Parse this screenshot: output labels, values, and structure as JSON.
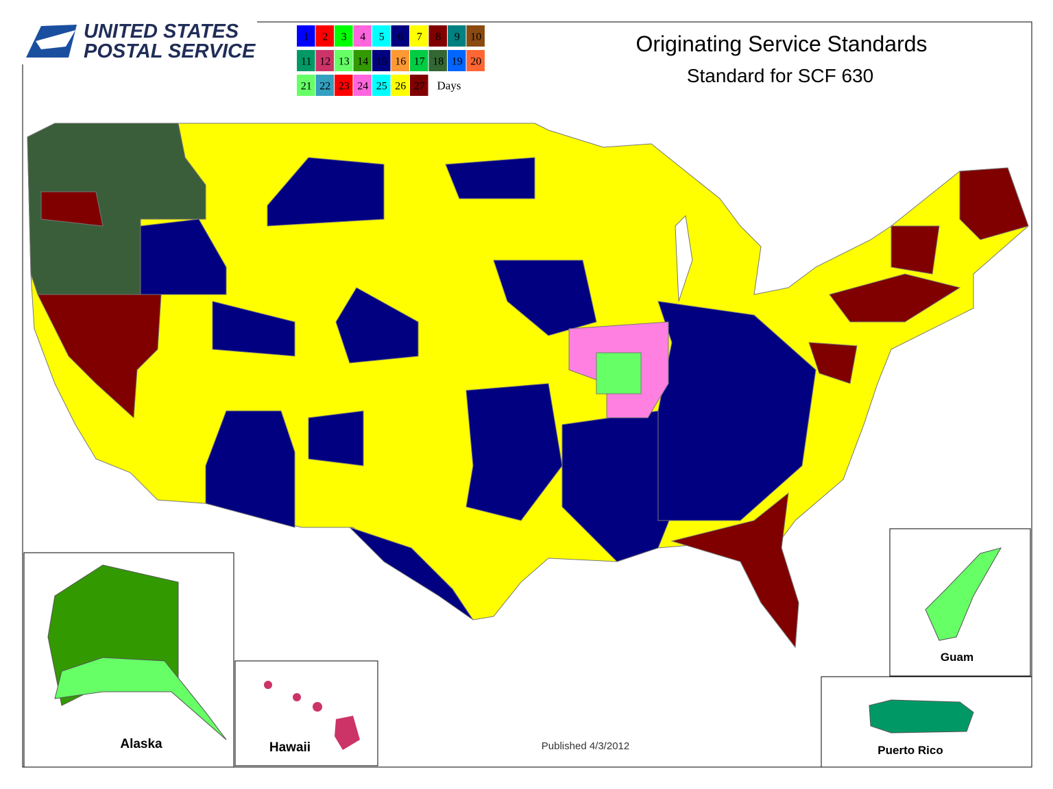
{
  "logo": {
    "line1": "UNITED STATES",
    "line2": "POSTAL SERVICE"
  },
  "header": {
    "title": "Originating Service Standards",
    "subtitle": "Standard for SCF 630"
  },
  "legend": {
    "items": [
      {
        "label": 1,
        "color": "#0000ff"
      },
      {
        "label": 2,
        "color": "#ff0000"
      },
      {
        "label": 3,
        "color": "#00ff00"
      },
      {
        "label": 4,
        "color": "#ff66dd"
      },
      {
        "label": 5,
        "color": "#00ffff"
      },
      {
        "label": 6,
        "color": "#000080"
      },
      {
        "label": 7,
        "color": "#ffff00"
      },
      {
        "label": 8,
        "color": "#800000"
      },
      {
        "label": 9,
        "color": "#008080"
      },
      {
        "label": 10,
        "color": "#8b4a10"
      },
      {
        "label": 11,
        "color": "#009966"
      },
      {
        "label": 12,
        "color": "#cc3366"
      },
      {
        "label": 13,
        "color": "#66ff66"
      },
      {
        "label": 14,
        "color": "#339900"
      },
      {
        "label": 15,
        "color": "#000080"
      },
      {
        "label": 16,
        "color": "#ff9933"
      },
      {
        "label": 17,
        "color": "#00cc44"
      },
      {
        "label": 18,
        "color": "#336633"
      },
      {
        "label": 19,
        "color": "#0066ff"
      },
      {
        "label": 20,
        "color": "#ff6633"
      },
      {
        "label": 21,
        "color": "#66ff66"
      },
      {
        "label": 22,
        "color": "#33a0c0"
      },
      {
        "label": 23,
        "color": "#ff0000"
      },
      {
        "label": 24,
        "color": "#ff66dd"
      },
      {
        "label": 25,
        "color": "#00ffff"
      },
      {
        "label": 26,
        "color": "#ffff00"
      },
      {
        "label": 27,
        "color": "#800000"
      }
    ],
    "unit": "Days"
  },
  "insets": {
    "alaska": "Alaska",
    "hawaii": "Hawaii",
    "guam": "Guam",
    "puerto_rico": "Puerto Rico"
  },
  "footer": {
    "published": "Published 4/3/2012"
  }
}
